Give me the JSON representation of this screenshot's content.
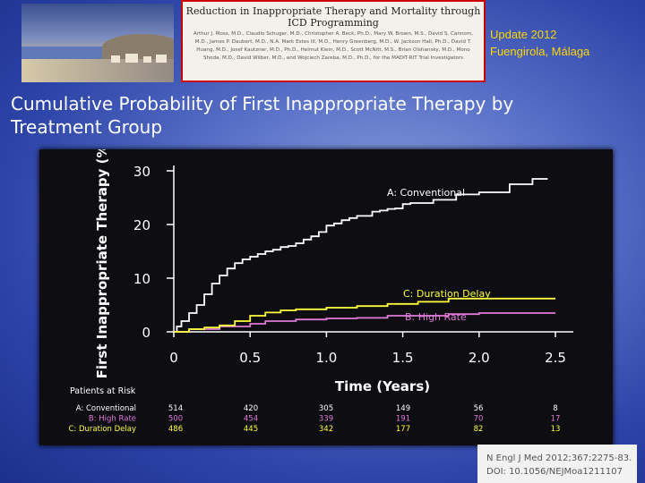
{
  "header": {
    "article_title": "Reduction in Inappropriate Therapy and Mortality through ICD Programming",
    "authors": "Arthur J. Moss, M.D., Claudio Schuger, M.D., Christopher A. Beck, Ph.D., Mary W. Brown, M.S., David S. Cannom, M.D., James P. Daubert, M.D., N.A. Mark Estes III, M.D., Henry Greenberg, M.D., W. Jackson Hall, Ph.D., David T. Huang, M.D., Josef Kautzner, M.D., Ph.D., Helmut Klein, M.D., Scott McNitt, M.S., Brian Olshansky, M.D., Mono Shoda, M.D., David Wilber, M.D., and Wojciech Zareba, M.D., Ph.D., for the MADIT-RIT Trial Investigators",
    "update_line1": "Update 2012",
    "update_line2": "Fuengirola, Málaga"
  },
  "slide_title": "Cumulative Probability of First Inappropriate Therapy by Treatment Group",
  "colors": {
    "conventional": "#ffffff",
    "high_rate": "#e07ad8",
    "duration_delay": "#ffff3c",
    "axis": "#ffffff",
    "panel": "#0d0d12"
  },
  "chart_data": {
    "type": "line",
    "title": "",
    "xlabel": "Time (Years)",
    "ylabel": "First Inappropriate Therapy (%)",
    "xlim": [
      0,
      2.5
    ],
    "ylim": [
      0,
      30
    ],
    "xticks": [
      "0",
      "0.5",
      "1.0",
      "1.5",
      "2.0",
      "2.5"
    ],
    "yticks": [
      "0",
      "10",
      "20",
      "30"
    ],
    "grid": false,
    "series": [
      {
        "name": "A: Conventional",
        "x": [
          0,
          0.02,
          0.05,
          0.1,
          0.15,
          0.2,
          0.25,
          0.3,
          0.35,
          0.4,
          0.45,
          0.5,
          0.55,
          0.6,
          0.65,
          0.7,
          0.75,
          0.8,
          0.85,
          0.9,
          0.95,
          1.0,
          1.05,
          1.1,
          1.15,
          1.2,
          1.25,
          1.3,
          1.35,
          1.4,
          1.45,
          1.5,
          1.55,
          1.6,
          1.7,
          1.8,
          1.85,
          1.9,
          2.0,
          2.1,
          2.2,
          2.3,
          2.35,
          2.4,
          2.45
        ],
        "y": [
          0,
          1.0,
          2.0,
          3.5,
          5.0,
          7.0,
          9.0,
          10.5,
          11.8,
          12.8,
          13.5,
          14.0,
          14.5,
          15.0,
          15.3,
          15.8,
          16.0,
          16.5,
          17.2,
          17.8,
          18.6,
          19.8,
          20.2,
          20.8,
          21.2,
          21.6,
          21.6,
          22.4,
          22.6,
          22.9,
          23.0,
          23.8,
          24.0,
          24.0,
          24.6,
          24.6,
          25.6,
          25.6,
          26.0,
          26.0,
          27.5,
          27.5,
          28.5,
          28.5,
          28.5
        ]
      },
      {
        "name": "B: High Rate",
        "x": [
          0,
          0.1,
          0.3,
          0.5,
          0.6,
          0.8,
          1.0,
          1.2,
          1.4,
          1.6,
          1.8,
          2.0,
          2.2,
          2.4,
          2.5
        ],
        "y": [
          0,
          0.5,
          1.0,
          1.5,
          2.0,
          2.3,
          2.5,
          2.6,
          3.0,
          3.0,
          3.3,
          3.5,
          3.5,
          3.5,
          3.5
        ]
      },
      {
        "name": "C: Duration Delay",
        "x": [
          0,
          0.1,
          0.2,
          0.3,
          0.4,
          0.5,
          0.6,
          0.7,
          0.8,
          1.0,
          1.2,
          1.4,
          1.6,
          1.8,
          2.0,
          2.2,
          2.5
        ],
        "y": [
          0,
          0.5,
          0.8,
          1.2,
          2.0,
          3.0,
          3.6,
          4.0,
          4.2,
          4.5,
          4.8,
          5.2,
          5.6,
          6.2,
          6.2,
          6.2,
          6.2
        ]
      }
    ],
    "line_labels": [
      "A: Conventional",
      "C: Duration Delay",
      "B: High Rate"
    ],
    "risk_table": {
      "heading": "Patients at Risk",
      "rows": [
        {
          "label": "A:  Conventional",
          "values": [
            "514",
            "420",
            "305",
            "149",
            "56",
            "8"
          ]
        },
        {
          "label": "B:  High Rate",
          "values": [
            "500",
            "454",
            "339",
            "191",
            "70",
            "17"
          ]
        },
        {
          "label": "C:  Duration Delay",
          "values": [
            "486",
            "445",
            "342",
            "177",
            "82",
            "13"
          ]
        }
      ]
    }
  },
  "citation": {
    "line1": "N Engl J Med 2012;367:2275-83.",
    "line2": "DOI: 10.1056/NEJMoa1211107"
  }
}
